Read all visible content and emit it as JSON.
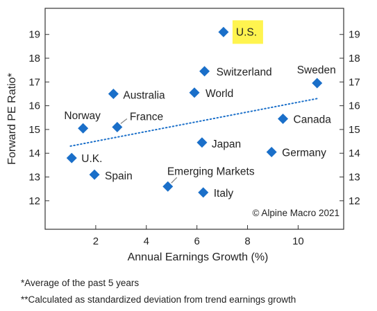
{
  "chart_data": {
    "type": "scatter",
    "xlabel": "Annual Earnings Growth (%)",
    "ylabel": "Forward PE Ratio*",
    "xlim": [
      0,
      11.8
    ],
    "ylim": [
      10.8,
      20.1
    ],
    "xticks": [
      2,
      4,
      6,
      8,
      10
    ],
    "yticks": [
      12,
      13,
      14,
      15,
      16,
      17,
      18,
      19
    ],
    "grid": false,
    "marker": "diamond",
    "marker_color": "#1a6fc9",
    "highlight_color": "#fff44f",
    "points": [
      {
        "label": "U.S.",
        "x": 7.05,
        "y": 19.1,
        "highlight": true
      },
      {
        "label": "Switzerland",
        "x": 6.3,
        "y": 17.45
      },
      {
        "label": "Sweden",
        "x": 10.75,
        "y": 16.95
      },
      {
        "label": "World",
        "x": 5.9,
        "y": 16.55
      },
      {
        "label": "Australia",
        "x": 2.7,
        "y": 16.5
      },
      {
        "label": "Canada",
        "x": 9.4,
        "y": 15.45
      },
      {
        "label": "Norway",
        "x": 1.5,
        "y": 15.05
      },
      {
        "label": "France",
        "x": 2.85,
        "y": 15.1
      },
      {
        "label": "Japan",
        "x": 6.2,
        "y": 14.45
      },
      {
        "label": "Germany",
        "x": 8.95,
        "y": 14.05
      },
      {
        "label": "U.K.",
        "x": 1.05,
        "y": 13.8
      },
      {
        "label": "Spain",
        "x": 1.95,
        "y": 13.1
      },
      {
        "label": "Emerging Markets",
        "x": 4.85,
        "y": 12.6
      },
      {
        "label": "Italy",
        "x": 6.25,
        "y": 12.35
      }
    ],
    "trendline": {
      "x": [
        1.0,
        10.75
      ],
      "y": [
        14.3,
        16.3
      ],
      "style": "dotted",
      "color": "#1a6fc9"
    },
    "annotation": "© Alpine Macro 2021"
  },
  "footnotes": {
    "note1": "*Average of the past 5 years",
    "note2": "**Calculated as standardized deviation from trend earnings growth"
  }
}
